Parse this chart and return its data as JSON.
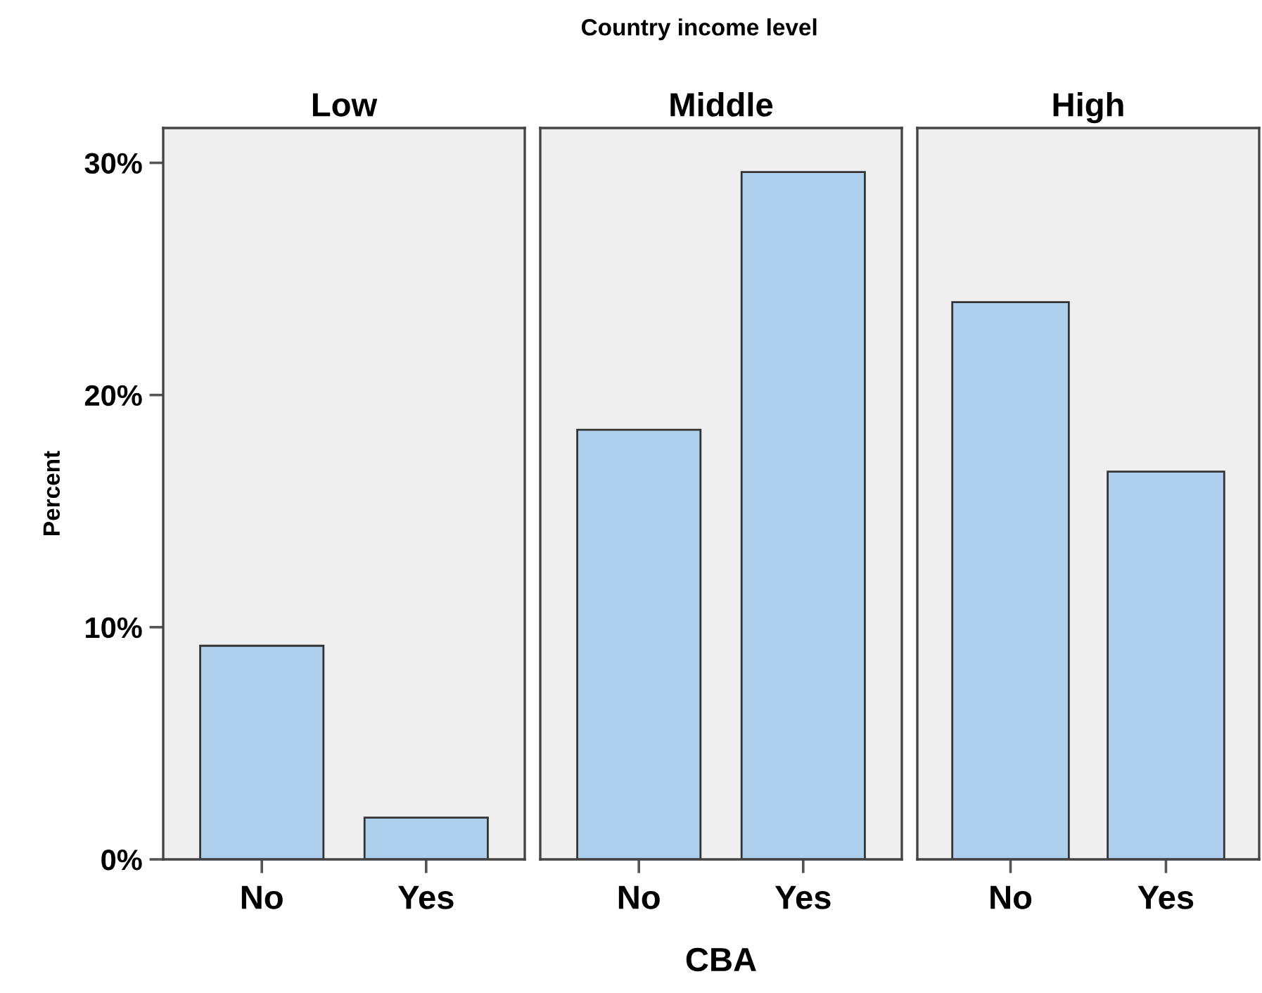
{
  "chart_data": [
    {
      "type": "bar",
      "title": "Low",
      "ylabel": "Percent",
      "categories": [
        "No",
        "Yes"
      ],
      "values": [
        9.2,
        1.8
      ],
      "color": "#aecfed",
      "ylim": [
        0,
        31.5
      ],
      "yticks": [
        {
          "value": 0,
          "label": "0%"
        },
        {
          "value": 10,
          "label": "10%"
        },
        {
          "value": 20,
          "label": "20%"
        },
        {
          "value": 30,
          "label": "30%"
        }
      ],
      "grid": false
    },
    {
      "type": "bar",
      "title": "Middle",
      "xlabel": "CBA",
      "annotations": [
        "Country income level"
      ],
      "categories": [
        "No",
        "Yes"
      ],
      "values": [
        18.5,
        29.6
      ],
      "color": "#aecfed",
      "ylim": [
        0,
        31.5
      ],
      "tick_labels": "x",
      "grid": false
    },
    {
      "type": "bar",
      "title": "High",
      "categories": [
        "No",
        "Yes"
      ],
      "values": [
        24.0,
        16.7
      ],
      "color": "#aecfed",
      "ylim": [
        0,
        31.5
      ],
      "tick_labels": "x",
      "grid": false
    }
  ]
}
